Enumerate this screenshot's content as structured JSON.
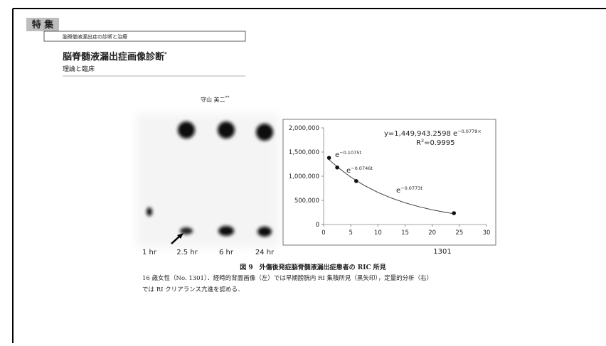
{
  "header": {
    "label": "特 集",
    "series": "脳脊髄液漏出症の診断と治療",
    "title": "脳脊髄液漏出症画像診断",
    "title_mark": "*",
    "subtitle": "理論と臨床",
    "author": "守山 英二",
    "author_mark": "**"
  },
  "figure": {
    "image_labels": [
      "1 hr",
      "2.5 hr",
      "6 hr",
      "24 hr"
    ],
    "caption_title": "図 9　外傷後発症脳脊髄液漏出症患者の RIC 所見",
    "caption_lines": [
      "16 歳女性（No. 1301）．経時的背面画像（左）では早期膀胱内 RI 集積所見（黒矢印），定量的分析（右）",
      "では RI クリアランス亢進を認める．"
    ]
  },
  "chart_data": {
    "type": "scatter",
    "xlabel": "1301",
    "x": [
      1,
      2.5,
      6,
      24
    ],
    "series": [
      {
        "values": [
          1380000,
          1180000,
          900000,
          235000
        ],
        "color": "#111111"
      }
    ],
    "trend": {
      "x": [
        1,
        3,
        5,
        7.5,
        10,
        12.5,
        15,
        17.5,
        20,
        22,
        24
      ],
      "values": [
        1341000,
        1149000,
        982000,
        808000,
        665000,
        547000,
        450000,
        370000,
        305000,
        261000,
        222000
      ],
      "color": "#333333"
    },
    "xlim": [
      0,
      30
    ],
    "ylim": [
      0,
      2000000
    ],
    "xticks": [
      0,
      5,
      10,
      15,
      20,
      25,
      30
    ],
    "yticks": [
      0,
      {
        "value": 500000,
        "label": "500,000"
      },
      {
        "value": 1000000,
        "label": "1,000,000"
      },
      {
        "value": 1500000,
        "label": "1,500,000"
      },
      {
        "value": 2000000,
        "label": "2,000,000"
      }
    ],
    "annotations": [
      {
        "text": "e",
        "exp": "−0.1075t"
      },
      {
        "text": "e",
        "exp": "−0.0746t"
      },
      {
        "text": "e",
        "exp": "−0.0773t"
      }
    ],
    "equation": {
      "text": "y=1,449,943.2598  e",
      "exp": "−0.0779×"
    },
    "r2": {
      "text": "R",
      "exp": "2",
      "rest": "=0.9995"
    }
  }
}
